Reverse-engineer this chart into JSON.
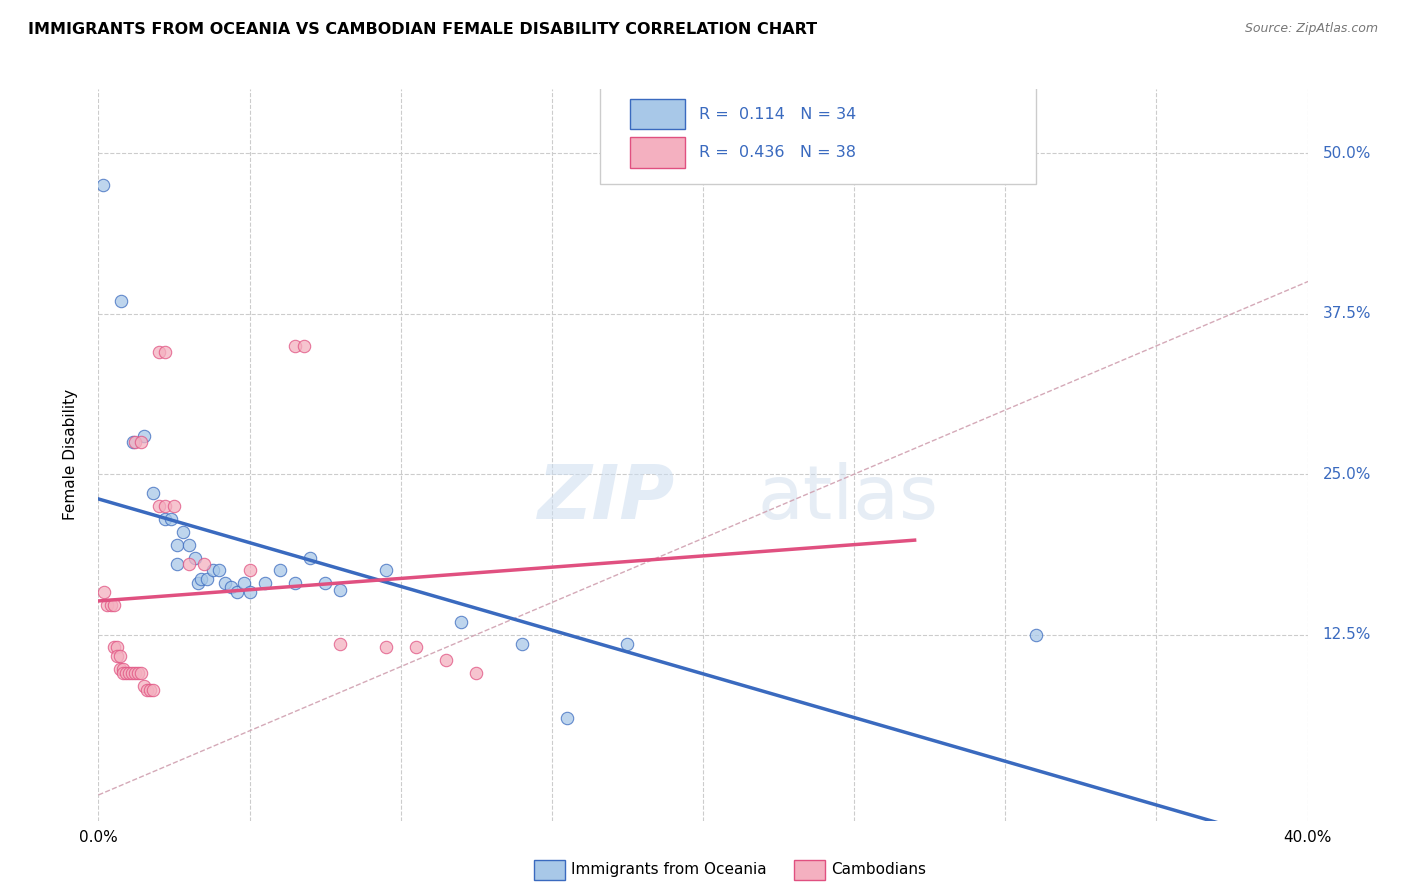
{
  "title": "IMMIGRANTS FROM OCEANIA VS CAMBODIAN FEMALE DISABILITY CORRELATION CHART",
  "source": "Source: ZipAtlas.com",
  "ylabel": "Female Disability",
  "right_yticks": [
    "50.0%",
    "37.5%",
    "25.0%",
    "12.5%"
  ],
  "right_ytick_vals": [
    0.5,
    0.375,
    0.25,
    0.125
  ],
  "xlim": [
    0.0,
    0.4
  ],
  "ylim": [
    -0.02,
    0.55
  ],
  "watermark_zip": "ZIP",
  "watermark_atlas": "atlas",
  "legend": {
    "oceania_r": "0.114",
    "oceania_n": "34",
    "cambodian_r": "0.436",
    "cambodian_n": "38"
  },
  "oceania_color": "#a8c8e8",
  "cambodian_color": "#f4b0c0",
  "trend_oceania_color": "#3a6abf",
  "trend_cambodian_color": "#e05080",
  "diagonal_color": "#d0a0b0",
  "oceania_points": [
    [
      0.0015,
      0.475
    ],
    [
      0.0075,
      0.385
    ],
    [
      0.0115,
      0.275
    ],
    [
      0.015,
      0.28
    ],
    [
      0.018,
      0.235
    ],
    [
      0.022,
      0.215
    ],
    [
      0.024,
      0.215
    ],
    [
      0.026,
      0.195
    ],
    [
      0.026,
      0.18
    ],
    [
      0.028,
      0.205
    ],
    [
      0.03,
      0.195
    ],
    [
      0.032,
      0.185
    ],
    [
      0.033,
      0.165
    ],
    [
      0.034,
      0.168
    ],
    [
      0.036,
      0.168
    ],
    [
      0.038,
      0.175
    ],
    [
      0.04,
      0.175
    ],
    [
      0.042,
      0.165
    ],
    [
      0.044,
      0.162
    ],
    [
      0.046,
      0.158
    ],
    [
      0.048,
      0.165
    ],
    [
      0.05,
      0.158
    ],
    [
      0.055,
      0.165
    ],
    [
      0.06,
      0.175
    ],
    [
      0.065,
      0.165
    ],
    [
      0.07,
      0.185
    ],
    [
      0.075,
      0.165
    ],
    [
      0.08,
      0.16
    ],
    [
      0.095,
      0.175
    ],
    [
      0.12,
      0.135
    ],
    [
      0.14,
      0.118
    ],
    [
      0.155,
      0.06
    ],
    [
      0.175,
      0.118
    ],
    [
      0.31,
      0.125
    ]
  ],
  "cambodian_points": [
    [
      0.002,
      0.158
    ],
    [
      0.003,
      0.148
    ],
    [
      0.004,
      0.148
    ],
    [
      0.005,
      0.148
    ],
    [
      0.005,
      0.115
    ],
    [
      0.006,
      0.115
    ],
    [
      0.006,
      0.108
    ],
    [
      0.007,
      0.108
    ],
    [
      0.007,
      0.098
    ],
    [
      0.008,
      0.098
    ],
    [
      0.008,
      0.095
    ],
    [
      0.009,
      0.095
    ],
    [
      0.01,
      0.095
    ],
    [
      0.011,
      0.095
    ],
    [
      0.012,
      0.095
    ],
    [
      0.013,
      0.095
    ],
    [
      0.014,
      0.095
    ],
    [
      0.015,
      0.085
    ],
    [
      0.016,
      0.082
    ],
    [
      0.017,
      0.082
    ],
    [
      0.018,
      0.082
    ],
    [
      0.02,
      0.225
    ],
    [
      0.022,
      0.225
    ],
    [
      0.025,
      0.225
    ],
    [
      0.012,
      0.275
    ],
    [
      0.014,
      0.275
    ],
    [
      0.02,
      0.345
    ],
    [
      0.022,
      0.345
    ],
    [
      0.03,
      0.18
    ],
    [
      0.035,
      0.18
    ],
    [
      0.05,
      0.175
    ],
    [
      0.065,
      0.35
    ],
    [
      0.068,
      0.35
    ],
    [
      0.08,
      0.118
    ],
    [
      0.095,
      0.115
    ],
    [
      0.105,
      0.115
    ],
    [
      0.115,
      0.105
    ],
    [
      0.125,
      0.095
    ]
  ],
  "background_color": "#ffffff",
  "grid_color": "#cccccc"
}
